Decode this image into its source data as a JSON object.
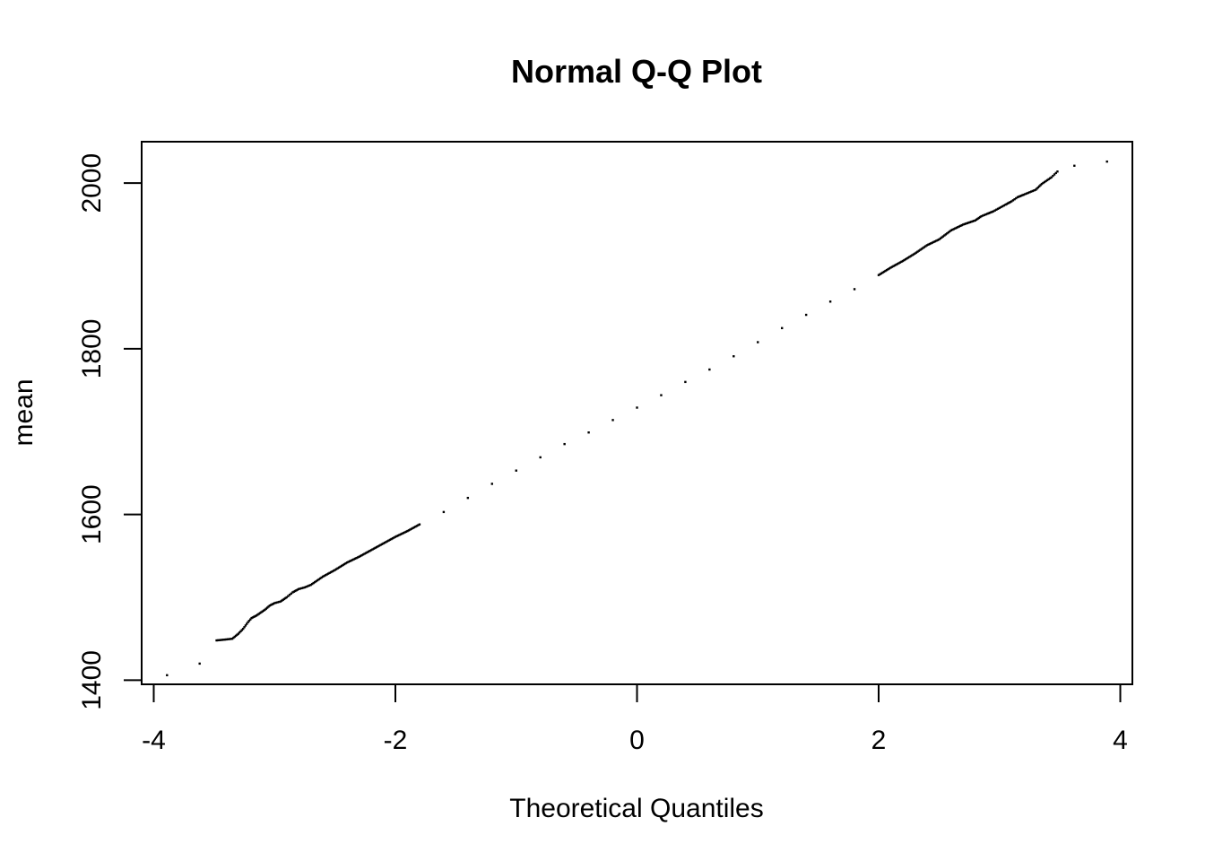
{
  "chart_data": {
    "type": "scatter",
    "title": "Normal Q-Q Plot",
    "xlabel": "Theoretical Quantiles",
    "ylabel": "mean",
    "xlim": [
      -4.1,
      4.1
    ],
    "ylim": [
      1395,
      2050
    ],
    "x_ticks": [
      -4,
      -2,
      0,
      2,
      4
    ],
    "x_tick_labels": [
      "-4",
      "-2",
      "0",
      "2",
      "4"
    ],
    "y_ticks": [
      1400,
      1600,
      1800,
      2000
    ],
    "y_tick_labels": [
      "1400",
      "1600",
      "1800",
      "2000"
    ],
    "grid": false,
    "legend": "none",
    "point_color": "#000000",
    "series": [
      {
        "x": [
          -3.89,
          -3.62,
          -3.48,
          -3.41,
          -3.35,
          -3.3,
          -3.26,
          -3.22,
          -3.19,
          -3.15,
          -3.12,
          -3.08,
          -3.04,
          -3.0,
          -2.95,
          -2.9,
          -2.85,
          -2.8,
          -2.75,
          -2.7,
          -2.6,
          -2.5,
          -2.4,
          -2.3,
          -2.2,
          -2.1,
          -2.0,
          -1.9,
          -1.8,
          -1.6,
          -1.4,
          -1.2,
          -1.0,
          -0.8,
          -0.6,
          -0.4,
          -0.2,
          0.0,
          0.2,
          0.4,
          0.6,
          0.8,
          1.0,
          1.2,
          1.4,
          1.6,
          1.8,
          2.0,
          2.1,
          2.2,
          2.3,
          2.4,
          2.5,
          2.6,
          2.7,
          2.8,
          2.85,
          2.9,
          2.95,
          3.0,
          3.05,
          3.1,
          3.15,
          3.2,
          3.25,
          3.3,
          3.35,
          3.43,
          3.48,
          3.62,
          3.89
        ],
        "y": [
          1406,
          1420,
          1448,
          1449,
          1450,
          1456,
          1462,
          1470,
          1475,
          1478,
          1481,
          1485,
          1490,
          1493,
          1495,
          1500,
          1506,
          1510,
          1512,
          1515,
          1525,
          1533,
          1542,
          1549,
          1557,
          1565,
          1573,
          1580,
          1588,
          1603,
          1620,
          1637,
          1653,
          1669,
          1685,
          1699,
          1714,
          1729,
          1744,
          1760,
          1775,
          1791,
          1808,
          1825,
          1841,
          1857,
          1872,
          1889,
          1898,
          1906,
          1915,
          1925,
          1932,
          1943,
          1950,
          1955,
          1960,
          1963,
          1966,
          1970,
          1974,
          1978,
          1983,
          1986,
          1989,
          1992,
          1999,
          2007,
          2014,
          2021,
          2026
        ]
      }
    ]
  }
}
